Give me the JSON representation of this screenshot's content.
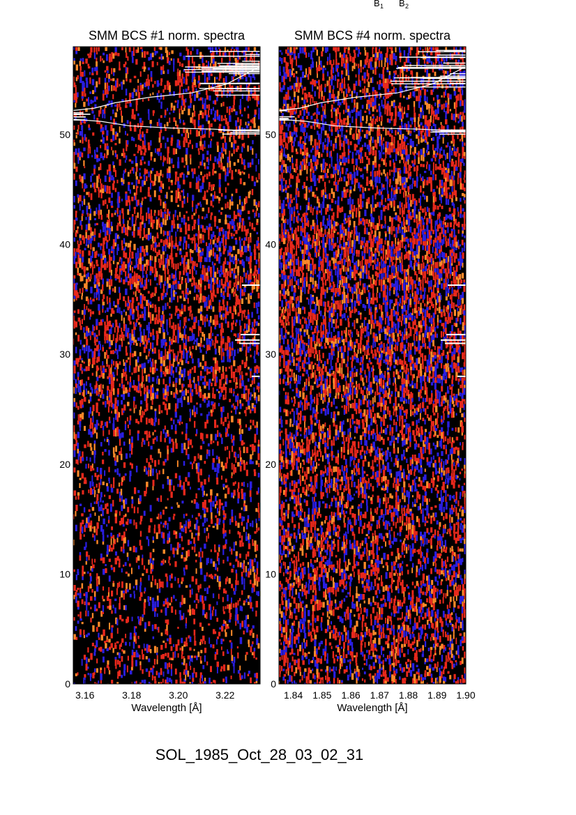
{
  "header": {
    "marks": [
      "B",
      "B"
    ],
    "subscripts": [
      "1",
      "2"
    ]
  },
  "footer": {
    "event_id": "SOL_1985_Oct_28_03_02_31"
  },
  "colors": {
    "background": "#000000",
    "blue": "#2a1ee0",
    "red": "#e8281c",
    "orange": "#ff8a2a",
    "trace": "#ffffff"
  },
  "chart_data": [
    {
      "type": "heatmap",
      "title": "SMM BCS #1 norm. spectra",
      "xlabel": "Wavelength [Å]",
      "ylabel": "",
      "xlim": [
        3.155,
        3.235
      ],
      "ylim": [
        0,
        58
      ],
      "xticks": [
        3.16,
        3.18,
        3.2,
        3.22
      ],
      "xtick_labels": [
        "3.16",
        "3.18",
        "3.20",
        "3.22"
      ],
      "yticks": [
        0,
        10,
        20,
        30,
        40,
        50
      ],
      "ytick_labels": [
        "0",
        "10",
        "20",
        "30",
        "40",
        "50"
      ]
    },
    {
      "type": "heatmap",
      "title": "SMM BCS #4 norm. spectra",
      "xlabel": "Wavelength [Å]",
      "ylabel": "",
      "xlim": [
        1.835,
        1.9
      ],
      "ylim": [
        0,
        58
      ],
      "xticks": [
        1.84,
        1.85,
        1.86,
        1.87,
        1.88,
        1.89,
        1.9
      ],
      "xtick_labels": [
        "1.84",
        "1.85",
        "1.86",
        "1.87",
        "1.88",
        "1.89",
        "1.90"
      ],
      "yticks": [
        0,
        10,
        20,
        30,
        40,
        50
      ],
      "ytick_labels": [
        "0",
        "10",
        "20",
        "30",
        "40",
        "50"
      ]
    }
  ]
}
